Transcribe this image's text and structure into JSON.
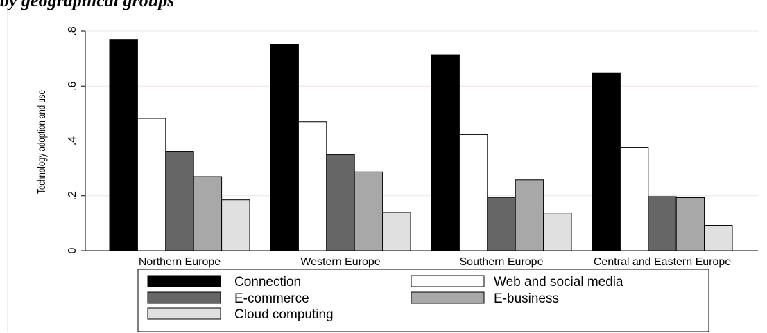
{
  "page": {
    "heading": "by geographical groups"
  },
  "chart_data": {
    "type": "bar",
    "title": "",
    "xlabel": "",
    "ylabel": "Technology adoption and use",
    "ylim": [
      0,
      0.8
    ],
    "yticks": [
      0,
      0.2,
      0.4,
      0.6,
      0.8
    ],
    "ytick_labels": [
      "0",
      ".2",
      ".4",
      ".6",
      ".8"
    ],
    "grid": "horizontal",
    "legend_position": "bottom",
    "categories": [
      "Northern Europe",
      "Western Europe",
      "Southern Europe",
      "Central and Eastern Europe"
    ],
    "series": [
      {
        "name": "Connection",
        "color": "#000000",
        "values": [
          0.768,
          0.752,
          0.714,
          0.648
        ]
      },
      {
        "name": "Web and social media",
        "color": "#ffffff",
        "values": [
          0.482,
          0.47,
          0.423,
          0.375
        ]
      },
      {
        "name": "E-commerce",
        "color": "#666666",
        "values": [
          0.362,
          0.35,
          0.194,
          0.197
        ]
      },
      {
        "name": "E-business",
        "color": "#a8a8a8",
        "values": [
          0.27,
          0.287,
          0.258,
          0.193
        ]
      },
      {
        "name": "Cloud computing",
        "color": "#e0e0e0",
        "values": [
          0.185,
          0.139,
          0.137,
          0.092
        ]
      }
    ]
  }
}
